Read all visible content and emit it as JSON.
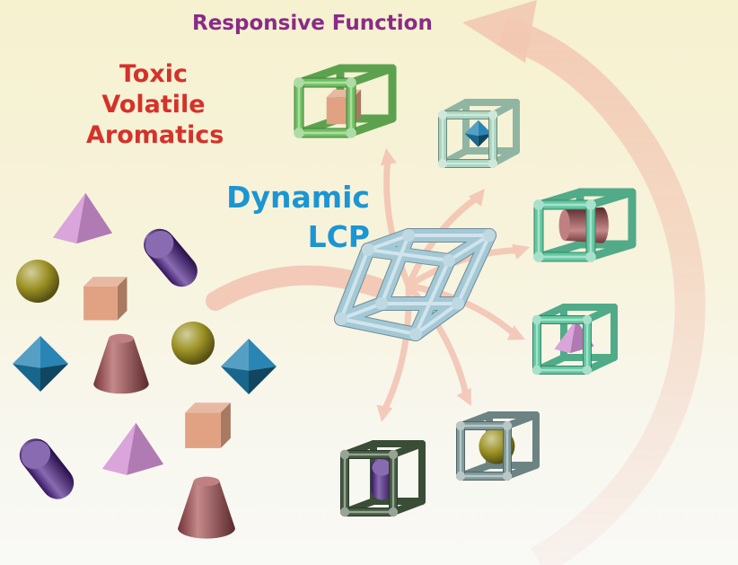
{
  "labels": {
    "responsive_function": "Responsive Function",
    "toxic_volatile_aromatics": [
      "Toxic",
      "Volatile",
      "Aromatics"
    ],
    "dynamic_lcp": [
      "Dynamic",
      "LCP"
    ]
  },
  "colors": {
    "responsive_function_text": "#8a2b87",
    "toxic_text": "#d4322a",
    "lcp_text": "#1c95d3",
    "arrow": "#f1b6a6",
    "guest_yellow_sphere": "#9c9124",
    "guest_salmon_cube": "#e0a283",
    "guest_pink_pyramid": "#cf8fd1",
    "guest_purple_capsule": "#4a1c88",
    "guest_blue_octahedron": "#1e7fb0",
    "guest_red_frustum": "#a54a4d",
    "cage_green": "#6cbf5c",
    "cage_mint": "#a9d5c0",
    "cage_teal": "#5fc8a0",
    "cage_host": "#a3c8d6",
    "cage_slate": "#7f9a9a",
    "cage_dark": "#445a40"
  },
  "guests": [
    {
      "kind": "pyramid",
      "name": "pink-pyramid"
    },
    {
      "kind": "capsule",
      "name": "purple-capsule"
    },
    {
      "kind": "sphere",
      "name": "yellow-sphere"
    },
    {
      "kind": "cube",
      "name": "salmon-cube"
    },
    {
      "kind": "sphere",
      "name": "yellow-sphere"
    },
    {
      "kind": "octahedron",
      "name": "blue-octahedron"
    },
    {
      "kind": "frustum",
      "name": "red-frustum"
    },
    {
      "kind": "octahedron",
      "name": "blue-octahedron"
    },
    {
      "kind": "cube",
      "name": "salmon-cube"
    },
    {
      "kind": "capsule",
      "name": "purple-capsule"
    },
    {
      "kind": "pyramid",
      "name": "pink-pyramid"
    },
    {
      "kind": "frustum",
      "name": "red-frustum"
    }
  ],
  "cages": [
    {
      "name": "green-cage-with-cube",
      "frame": "cage_green",
      "guest": "cube"
    },
    {
      "name": "mint-cage-with-octahedron",
      "frame": "cage_mint",
      "guest": "octahedron"
    },
    {
      "name": "teal-cage-with-frustum",
      "frame": "cage_teal",
      "guest": "frustum"
    },
    {
      "name": "teal-cage-with-pyramid",
      "frame": "cage_teal",
      "guest": "pyramid"
    },
    {
      "name": "slate-cage-with-sphere",
      "frame": "cage_slate",
      "guest": "sphere"
    },
    {
      "name": "dark-cage-with-capsule",
      "frame": "cage_dark",
      "guest": "capsule"
    }
  ]
}
